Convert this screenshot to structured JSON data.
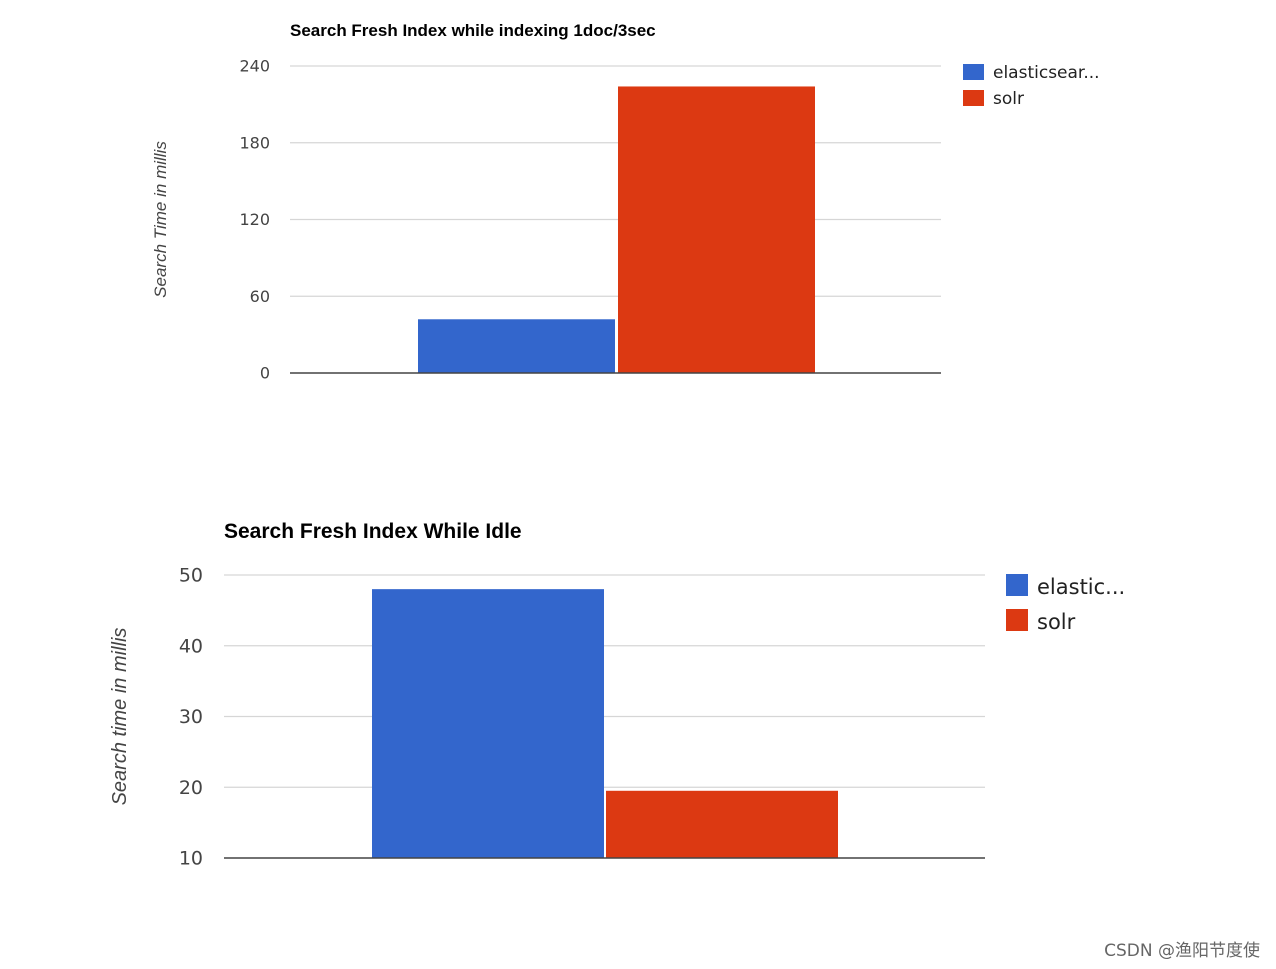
{
  "chart_data": [
    {
      "type": "bar",
      "title": "Search Fresh Index while indexing 1doc/3sec",
      "ylabel": "Search Time in millis",
      "xlabel": "",
      "ylim": [
        0,
        240
      ],
      "yticks": [
        0,
        60,
        120,
        180,
        240
      ],
      "categories": [
        ""
      ],
      "series": [
        {
          "name": "elasticsear...",
          "values": [
            42
          ],
          "color": "#3366cc"
        },
        {
          "name": "solr",
          "values": [
            224
          ],
          "color": "#dc3912"
        }
      ],
      "grid": true,
      "legend": "right"
    },
    {
      "type": "bar",
      "title": "Search Fresh Index While Idle",
      "ylabel": "Search time in millis",
      "xlabel": "",
      "ylim": [
        10,
        50
      ],
      "yticks": [
        10,
        20,
        30,
        40,
        50
      ],
      "categories": [
        ""
      ],
      "series": [
        {
          "name": "elastic...",
          "values": [
            48
          ],
          "color": "#3366cc"
        },
        {
          "name": "solr",
          "values": [
            19.5
          ],
          "color": "#dc3912"
        }
      ],
      "grid": true,
      "legend": "right"
    }
  ],
  "watermark": "CSDN @渔阳节度使"
}
